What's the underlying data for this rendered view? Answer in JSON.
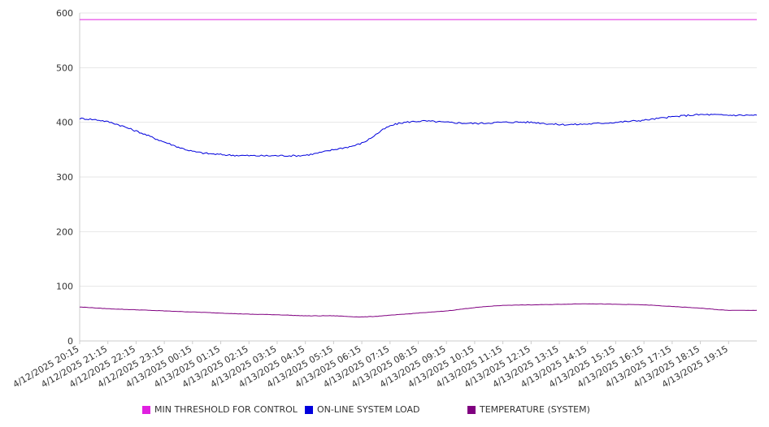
{
  "chart_data": {
    "type": "line",
    "title": "",
    "xlabel": "",
    "ylabel": "",
    "ylim": [
      0,
      600
    ],
    "y_ticks": [
      0,
      100,
      200,
      300,
      400,
      500,
      600
    ],
    "grid": true,
    "legend_position": "bottom",
    "categories": [
      "4/12/2025 20:15",
      "4/12/2025 21:15",
      "4/12/2025 22:15",
      "4/12/2025 23:15",
      "4/13/2025 00:15",
      "4/13/2025 01:15",
      "4/13/2025 02:15",
      "4/13/2025 03:15",
      "4/13/2025 04:15",
      "4/13/2025 05:15",
      "4/13/2025 06:15",
      "4/13/2025 07:15",
      "4/13/2025 08:15",
      "4/13/2025 09:15",
      "4/13/2025 10:15",
      "4/13/2025 11:15",
      "4/13/2025 12:15",
      "4/13/2025 13:15",
      "4/13/2025 14:15",
      "4/13/2025 15:15",
      "4/13/2025 16:15",
      "4/13/2025 17:15",
      "4/13/2025 18:15",
      "4/13/2025 19:15"
    ],
    "series": [
      {
        "name": "MIN THRESHOLD FOR CONTROL",
        "color": "#e020e0",
        "values": [
          588,
          588,
          588,
          588,
          588,
          588,
          588,
          588,
          588,
          588,
          588,
          588,
          588,
          588,
          588,
          588,
          588,
          588,
          588,
          588,
          588,
          588,
          588,
          588
        ]
      },
      {
        "name": "ON-LINE SYSTEM LOAD",
        "color": "#0000dd",
        "values": [
          407,
          401,
          384,
          364,
          347,
          341,
          339,
          339,
          340,
          350,
          362,
          393,
          402,
          400,
          398,
          400,
          400,
          396,
          397,
          400,
          404,
          410,
          414,
          413
        ]
      },
      {
        "name": "TEMPERATURE (SYSTEM)",
        "color": "#800080",
        "values": [
          62,
          59,
          57,
          55,
          53,
          51,
          49,
          48,
          46,
          46,
          44,
          47,
          51,
          55,
          61,
          65,
          66,
          67,
          68,
          67,
          66,
          63,
          60,
          56
        ]
      }
    ]
  }
}
